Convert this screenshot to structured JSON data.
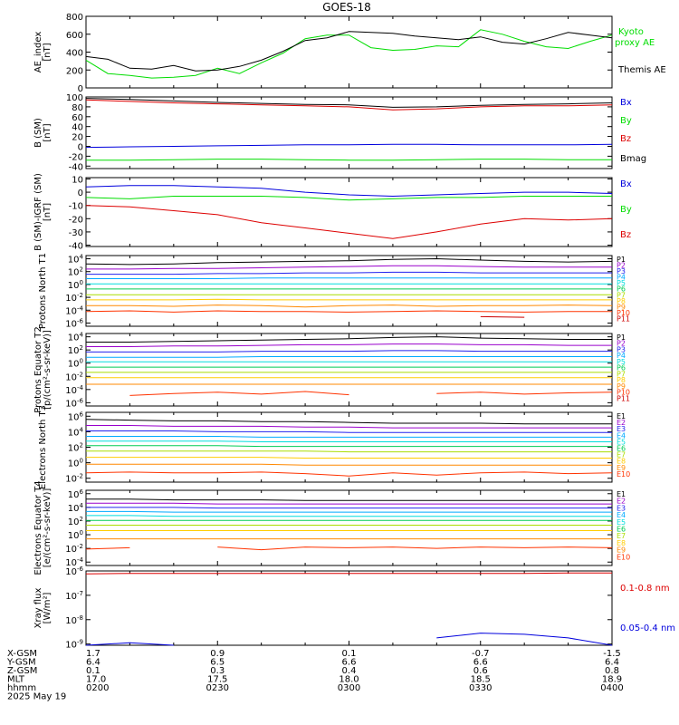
{
  "title": "GOES-18",
  "colors": {
    "black": "#000000",
    "blue": "#0000dd",
    "green": "#00dd00",
    "red": "#dd0000",
    "channel_colors": [
      "#000000",
      "#9900cc",
      "#2222ee",
      "#00aaff",
      "#00dddd",
      "#00cc55",
      "#aadd00",
      "#ffcc00",
      "#ff8800",
      "#ff3300",
      "#cc0000"
    ]
  },
  "time_axis": {
    "ticks_hhmm": [
      "0200",
      "0230",
      "0300",
      "0330",
      "0400"
    ],
    "date": "2025 May 19",
    "rows": [
      {
        "label": "X-GSM",
        "values": [
          "1.7",
          "0.9",
          "0.1",
          "-0.7",
          "-1.5"
        ]
      },
      {
        "label": "Y-GSM",
        "values": [
          "6.4",
          "6.5",
          "6.6",
          "6.6",
          "6.4"
        ]
      },
      {
        "label": "Z-GSM",
        "values": [
          "0.1",
          "0.3",
          "0.4",
          "0.6",
          "0.8"
        ]
      },
      {
        "label": "MLT",
        "values": [
          "17.0",
          "17.5",
          "18.0",
          "18.5",
          "18.9"
        ]
      },
      {
        "label": "hhmm",
        "values": [
          "0200",
          "0230",
          "0300",
          "0330",
          "0400"
        ]
      }
    ]
  },
  "chart_data": [
    {
      "type": "line",
      "id": "ae",
      "ylabel": "AE_index [nT]",
      "ylim": [
        0,
        800
      ],
      "yticks": [
        "0",
        "200",
        "400",
        "600",
        "800"
      ],
      "x": [
        0,
        5,
        10,
        15,
        20,
        25,
        30,
        35,
        40,
        45,
        50,
        55,
        60,
        65,
        70,
        75,
        80,
        85,
        90,
        95,
        100,
        105,
        110,
        115,
        120
      ],
      "series": [
        {
          "name": "Kyoto proxy AE",
          "color": "#00dd00",
          "values": [
            310,
            160,
            140,
            110,
            120,
            140,
            220,
            160,
            280,
            390,
            550,
            590,
            590,
            450,
            420,
            430,
            470,
            460,
            650,
            600,
            520,
            460,
            440,
            520,
            590
          ]
        },
        {
          "name": "Themis AE",
          "color": "#000000",
          "values": [
            350,
            320,
            220,
            210,
            250,
            190,
            200,
            240,
            310,
            410,
            530,
            560,
            630,
            620,
            610,
            580,
            560,
            540,
            570,
            510,
            490,
            550,
            620,
            590,
            560
          ]
        }
      ]
    },
    {
      "type": "line",
      "id": "bsm",
      "ylabel": "B (SM) [nT]",
      "ylim": [
        -45,
        100
      ],
      "yticks": [
        "100",
        "80",
        "60",
        "40",
        "20",
        "0",
        "-20",
        "-40"
      ],
      "x": [
        0,
        10,
        20,
        30,
        40,
        50,
        60,
        70,
        80,
        90,
        100,
        110,
        120
      ],
      "series": [
        {
          "name": "Bx",
          "color": "#0000dd",
          "values": [
            -2,
            -1,
            0,
            1,
            2,
            3,
            3,
            4,
            4,
            3,
            3,
            3,
            4
          ]
        },
        {
          "name": "By",
          "color": "#00dd00",
          "values": [
            -28,
            -28,
            -27,
            -26,
            -26,
            -27,
            -28,
            -28,
            -27,
            -26,
            -26,
            -27,
            -27
          ]
        },
        {
          "name": "Bz",
          "color": "#dd0000",
          "values": [
            94,
            91,
            88,
            86,
            84,
            82,
            80,
            74,
            76,
            80,
            82,
            82,
            84
          ]
        },
        {
          "name": "Bmag",
          "color": "#000000",
          "values": [
            97,
            95,
            92,
            89,
            87,
            85,
            84,
            79,
            80,
            83,
            85,
            86,
            88
          ]
        }
      ]
    },
    {
      "type": "line",
      "id": "bsm-igrf",
      "ylabel": "B (SM)-IGRF (SM) [nT]",
      "ylim": [
        -41,
        11
      ],
      "yticks": [
        "10",
        "0",
        "-10",
        "-20",
        "-30",
        "-40"
      ],
      "x": [
        0,
        10,
        20,
        30,
        40,
        50,
        60,
        70,
        80,
        90,
        100,
        110,
        120
      ],
      "series": [
        {
          "name": "Bx",
          "color": "#0000dd",
          "values": [
            4,
            5,
            5,
            4,
            3,
            0,
            -2,
            -3,
            -2,
            -1,
            0,
            0,
            -1
          ]
        },
        {
          "name": "By",
          "color": "#00dd00",
          "values": [
            -4,
            -5,
            -3,
            -3,
            -3,
            -4,
            -6,
            -5,
            -4,
            -4,
            -3,
            -3,
            -3
          ]
        },
        {
          "name": "Bz",
          "color": "#dd0000",
          "values": [
            -10,
            -11,
            -14,
            -17,
            -23,
            -27,
            -31,
            -35,
            -30,
            -24,
            -20,
            -21,
            -20
          ]
        }
      ]
    },
    {
      "type": "line",
      "id": "protons-t1",
      "ylabel": "Protons North T1",
      "ylim_log10": [
        -6.5,
        4.5
      ],
      "yticks": [
        "10^4",
        "10^2",
        "10^0",
        "10^-2",
        "10^-4",
        "10^-6"
      ],
      "x": [
        0,
        10,
        20,
        30,
        40,
        50,
        60,
        70,
        80,
        90,
        100,
        110,
        120
      ],
      "channels": [
        "P1",
        "P2",
        "P3",
        "P4",
        "P5",
        "P6",
        "P7",
        "P8",
        "P9",
        "P10",
        "P11"
      ],
      "series_log10": [
        [
          3.2,
          3.1,
          3.2,
          3.4,
          3.5,
          3.6,
          3.7,
          3.9,
          4.0,
          3.8,
          3.6,
          3.5,
          3.6
        ],
        [
          2.4,
          2.4,
          2.5,
          2.5,
          2.6,
          2.7,
          2.8,
          2.9,
          2.9,
          2.8,
          2.7,
          2.7,
          2.7
        ],
        [
          1.6,
          1.6,
          1.6,
          1.7,
          1.7,
          1.8,
          1.8,
          1.9,
          1.9,
          1.8,
          1.8,
          1.8,
          1.8
        ],
        [
          0.9,
          0.9,
          0.9,
          0.9,
          1.0,
          1.0,
          1.0,
          1.0,
          1.0,
          1.0,
          1.0,
          1.0,
          1.0
        ],
        [
          0.1,
          0.1,
          0.1,
          0.1,
          0.1,
          0.1,
          0.1,
          0.1,
          0.1,
          0.1,
          0.1,
          0.1,
          0.1
        ],
        [
          -0.7,
          -0.7,
          -0.7,
          -0.7,
          -0.7,
          -0.7,
          -0.7,
          -0.7,
          -0.7,
          -0.7,
          -0.7,
          -0.7,
          -0.7
        ],
        [
          -1.6,
          -1.6,
          -1.6,
          -1.6,
          -1.6,
          -1.6,
          -1.6,
          -1.6,
          -1.6,
          -1.6,
          -1.6,
          -1.6,
          -1.6
        ],
        [
          -2.4,
          -2.4,
          -2.4,
          -2.3,
          -2.4,
          -2.4,
          -2.4,
          -2.4,
          -2.4,
          -2.4,
          -2.4,
          -2.4,
          -2.4
        ],
        [
          -3.3,
          -3.3,
          -3.4,
          -3.2,
          -3.3,
          -3.5,
          -3.3,
          -3.2,
          -3.4,
          -3.3,
          -3.3,
          -3.2,
          -3.3
        ],
        [
          -4.2,
          -4.1,
          -4.3,
          -4.1,
          -4.2,
          -4.2,
          -4.3,
          -4.2,
          -4.1,
          -4.2,
          -4.3,
          -4.2,
          -4.2
        ],
        [
          null,
          null,
          null,
          null,
          null,
          null,
          null,
          null,
          null,
          -5.0,
          -5.1,
          null,
          null
        ]
      ]
    },
    {
      "type": "line",
      "id": "protons-t2",
      "ylabel": "Protons Equator T2 [p/(cm²-s-sr-keV)]",
      "ylim_log10": [
        -6.5,
        4.5
      ],
      "yticks": [
        "10^4",
        "10^2",
        "10^0",
        "10^-2",
        "10^-4",
        "10^-6"
      ],
      "x": [
        0,
        10,
        20,
        30,
        40,
        50,
        60,
        70,
        80,
        90,
        100,
        110,
        120
      ],
      "channels": [
        "P1",
        "P2",
        "P3",
        "P4",
        "P5",
        "P6",
        "P7",
        "P8",
        "P9",
        "P10",
        "P11"
      ],
      "series_log10": [
        [
          3.2,
          3.2,
          3.3,
          3.4,
          3.5,
          3.6,
          3.7,
          3.9,
          4.0,
          3.8,
          3.7,
          3.6,
          3.6
        ],
        [
          2.5,
          2.5,
          2.6,
          2.6,
          2.7,
          2.8,
          2.8,
          2.9,
          2.9,
          2.8,
          2.8,
          2.7,
          2.7
        ],
        [
          1.7,
          1.7,
          1.7,
          1.7,
          1.8,
          1.8,
          1.8,
          1.9,
          1.9,
          1.8,
          1.8,
          1.8,
          1.8
        ],
        [
          0.9,
          0.9,
          0.9,
          0.9,
          1.0,
          1.0,
          1.0,
          1.0,
          1.0,
          1.0,
          1.0,
          1.0,
          1.0
        ],
        [
          0.2,
          0.2,
          0.2,
          0.2,
          0.2,
          0.2,
          0.2,
          0.2,
          0.2,
          0.2,
          0.2,
          0.2,
          0.2
        ],
        [
          -0.6,
          -0.6,
          -0.6,
          -0.6,
          -0.6,
          -0.6,
          -0.6,
          -0.6,
          -0.6,
          -0.6,
          -0.6,
          -0.6,
          -0.6
        ],
        [
          -1.4,
          -1.4,
          -1.4,
          -1.4,
          -1.4,
          -1.4,
          -1.4,
          -1.4,
          -1.4,
          -1.4,
          -1.4,
          -1.4,
          -1.4
        ],
        [
          -2.2,
          -2.2,
          -2.2,
          -2.2,
          -2.2,
          -2.2,
          -2.2,
          -2.2,
          -2.2,
          -2.2,
          -2.2,
          -2.2,
          -2.2
        ],
        [
          -3.2,
          -3.2,
          -3.2,
          -3.2,
          -3.2,
          -3.2,
          -3.2,
          -3.2,
          -3.2,
          -3.2,
          -3.2,
          -3.2,
          -3.2
        ],
        [
          null,
          -4.9,
          -4.6,
          -4.4,
          -4.7,
          -4.3,
          -4.8,
          null,
          -4.6,
          -4.4,
          -4.7,
          -4.5,
          -4.4
        ],
        [
          null,
          null,
          null,
          null,
          null,
          null,
          null,
          null,
          null,
          null,
          null,
          null,
          null
        ]
      ]
    },
    {
      "type": "line",
      "id": "electrons-t3",
      "ylabel": "Electrons North T3",
      "ylim_log10": [
        -2.5,
        6.5
      ],
      "yticks": [
        "10^6",
        "10^4",
        "10^2",
        "10^0",
        "10^-2"
      ],
      "x": [
        0,
        10,
        20,
        30,
        40,
        50,
        60,
        70,
        80,
        90,
        100,
        110,
        120
      ],
      "channels": [
        "E1",
        "E2",
        "E3",
        "E4",
        "E5",
        "E6",
        "E7",
        "E8",
        "E9",
        "E10"
      ],
      "series_log10": [
        [
          5.6,
          5.5,
          5.4,
          5.4,
          5.3,
          5.3,
          5.2,
          5.1,
          5.1,
          5.1,
          5.0,
          5.0,
          5.0
        ],
        [
          4.8,
          4.8,
          4.7,
          4.7,
          4.7,
          4.6,
          4.6,
          4.5,
          4.5,
          4.5,
          4.5,
          4.5,
          4.5
        ],
        [
          4.1,
          4.1,
          4.1,
          4.0,
          4.0,
          4.0,
          3.9,
          3.9,
          3.9,
          3.9,
          3.9,
          3.9,
          3.9
        ],
        [
          3.4,
          3.4,
          3.4,
          3.4,
          3.3,
          3.3,
          3.3,
          3.3,
          3.3,
          3.3,
          3.3,
          3.3,
          3.3
        ],
        [
          2.8,
          2.8,
          2.8,
          2.8,
          2.7,
          2.7,
          2.7,
          2.7,
          2.7,
          2.7,
          2.7,
          2.7,
          2.7
        ],
        [
          2.2,
          2.2,
          2.2,
          2.2,
          2.1,
          2.1,
          2.1,
          2.1,
          2.1,
          2.1,
          2.1,
          2.1,
          2.1
        ],
        [
          1.5,
          1.5,
          1.5,
          1.5,
          1.5,
          1.5,
          1.4,
          1.4,
          1.4,
          1.4,
          1.4,
          1.4,
          1.4
        ],
        [
          0.7,
          0.7,
          0.7,
          0.7,
          0.7,
          0.6,
          0.6,
          0.6,
          0.6,
          0.6,
          0.6,
          0.6,
          0.6
        ],
        [
          -0.2,
          -0.2,
          -0.2,
          -0.2,
          -0.2,
          -0.3,
          -0.3,
          -0.3,
          -0.3,
          -0.3,
          -0.3,
          -0.3,
          -0.3
        ],
        [
          -1.3,
          -1.2,
          -1.3,
          -1.3,
          -1.2,
          -1.4,
          -1.7,
          -1.3,
          -1.6,
          -1.3,
          -1.2,
          -1.4,
          -1.3
        ]
      ]
    },
    {
      "type": "line",
      "id": "electrons-t4",
      "ylabel": "Electrons Equator T4 [e/(cm²-s-sr-keV)]",
      "ylim_log10": [
        -4.5,
        6.5
      ],
      "yticks": [
        "10^6",
        "10^4",
        "10^2",
        "10^0",
        "10^-2",
        "10^-4"
      ],
      "x": [
        0,
        10,
        20,
        30,
        40,
        50,
        60,
        70,
        80,
        90,
        100,
        110,
        120
      ],
      "channels": [
        "E1",
        "E2",
        "E3",
        "E4",
        "E5",
        "E6",
        "E7",
        "E8",
        "E9",
        "E10"
      ],
      "series_log10": [
        [
          5.2,
          5.2,
          5.1,
          5.1,
          5.1,
          5.0,
          5.0,
          5.0,
          5.0,
          5.0,
          5.0,
          5.0,
          5.0
        ],
        [
          4.6,
          4.6,
          4.6,
          4.5,
          4.5,
          4.5,
          4.5,
          4.5,
          4.5,
          4.5,
          4.5,
          4.5,
          4.5
        ],
        [
          4.0,
          4.0,
          4.0,
          3.9,
          3.9,
          3.9,
          3.9,
          3.9,
          3.9,
          3.9,
          3.9,
          3.9,
          3.9
        ],
        [
          3.4,
          3.4,
          3.3,
          3.3,
          3.3,
          3.3,
          3.3,
          3.3,
          3.3,
          3.3,
          3.3,
          3.3,
          3.3
        ],
        [
          2.8,
          2.8,
          2.7,
          2.7,
          2.7,
          2.7,
          2.7,
          2.7,
          2.7,
          2.7,
          2.7,
          2.7,
          2.7
        ],
        [
          2.1,
          2.1,
          2.1,
          2.1,
          2.1,
          2.1,
          2.1,
          2.1,
          2.1,
          2.1,
          2.1,
          2.1,
          2.1
        ],
        [
          1.4,
          1.4,
          1.4,
          1.4,
          1.4,
          1.4,
          1.4,
          1.4,
          1.4,
          1.4,
          1.4,
          1.4,
          1.4
        ],
        [
          0.6,
          0.6,
          0.6,
          0.6,
          0.6,
          0.6,
          0.6,
          0.6,
          0.6,
          0.6,
          0.6,
          0.6,
          0.6
        ],
        [
          -0.6,
          -0.6,
          -0.6,
          -0.6,
          -0.6,
          -0.6,
          -0.6,
          -0.6,
          -0.6,
          -0.6,
          -0.6,
          -0.6,
          -0.6
        ],
        [
          -2.1,
          -1.9,
          null,
          -1.8,
          -2.2,
          -1.8,
          -1.9,
          -1.8,
          -2.0,
          -1.8,
          -1.9,
          -1.8,
          -1.9
        ]
      ]
    },
    {
      "type": "line",
      "id": "xray",
      "ylabel": "Xray flux [W/m²]",
      "ylim_log10": [
        -9.05,
        -6.0
      ],
      "yticks": [
        "10^-6",
        "10^-7",
        "10^-8",
        "10^-9"
      ],
      "x": [
        0,
        10,
        20,
        30,
        40,
        50,
        60,
        70,
        80,
        90,
        100,
        110,
        120
      ],
      "series": [
        {
          "name": "0.1-0.8 nm",
          "color": "#dd0000",
          "values_log10": [
            -6.12,
            -6.1,
            -6.1,
            -6.1,
            -6.1,
            -6.1,
            -6.1,
            -6.1,
            -6.1,
            -6.1,
            -6.1,
            -6.08,
            -6.08
          ]
        },
        {
          "name": "0.05-0.4 nm",
          "color": "#0000dd",
          "values_log10": [
            -9.05,
            -8.95,
            -9.05,
            null,
            null,
            null,
            null,
            null,
            -8.75,
            -8.55,
            -8.6,
            -8.75,
            -9.05
          ]
        }
      ]
    }
  ]
}
